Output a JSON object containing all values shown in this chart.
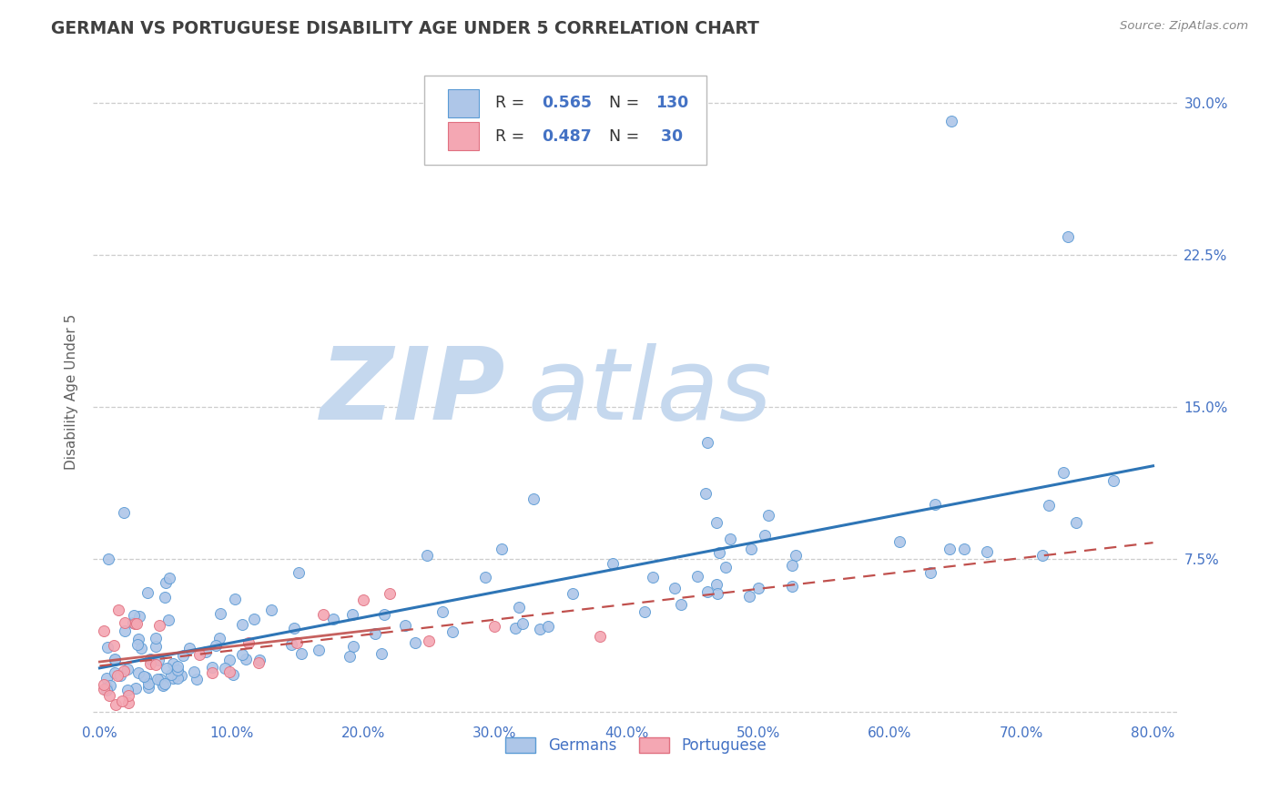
{
  "title": "GERMAN VS PORTUGUESE DISABILITY AGE UNDER 5 CORRELATION CHART",
  "source": "Source: ZipAtlas.com",
  "ylabel": "Disability Age Under 5",
  "xlim": [
    -0.005,
    0.82
  ],
  "ylim": [
    -0.005,
    0.32
  ],
  "xticks": [
    0.0,
    0.1,
    0.2,
    0.3,
    0.4,
    0.5,
    0.6,
    0.7,
    0.8
  ],
  "yticks": [
    0.0,
    0.075,
    0.15,
    0.225,
    0.3
  ],
  "ytick_labels": [
    "",
    "7.5%",
    "15.0%",
    "22.5%",
    "30.0%"
  ],
  "xtick_labels": [
    "0.0%",
    "10.0%",
    "20.0%",
    "30.0%",
    "40.0%",
    "50.0%",
    "60.0%",
    "70.0%",
    "80.0%"
  ],
  "german_R": 0.565,
  "german_N": 130,
  "portuguese_R": 0.487,
  "portuguese_N": 30,
  "german_color": "#aec6e8",
  "german_edge_color": "#5b9bd5",
  "german_line_color": "#2e75b6",
  "portuguese_color": "#f4a7b3",
  "portuguese_edge_color": "#e07080",
  "portuguese_line_color": "#c0504d",
  "background_color": "#ffffff",
  "grid_color": "#c8c8c8",
  "title_color": "#404040",
  "axis_label_color": "#606060",
  "tick_label_color": "#4472c4",
  "watermark_zip_color": "#c5d8ee",
  "watermark_atlas_color": "#c5d8ee",
  "legend_R_color": "#4472c4",
  "legend_N_color": "#4472c4"
}
